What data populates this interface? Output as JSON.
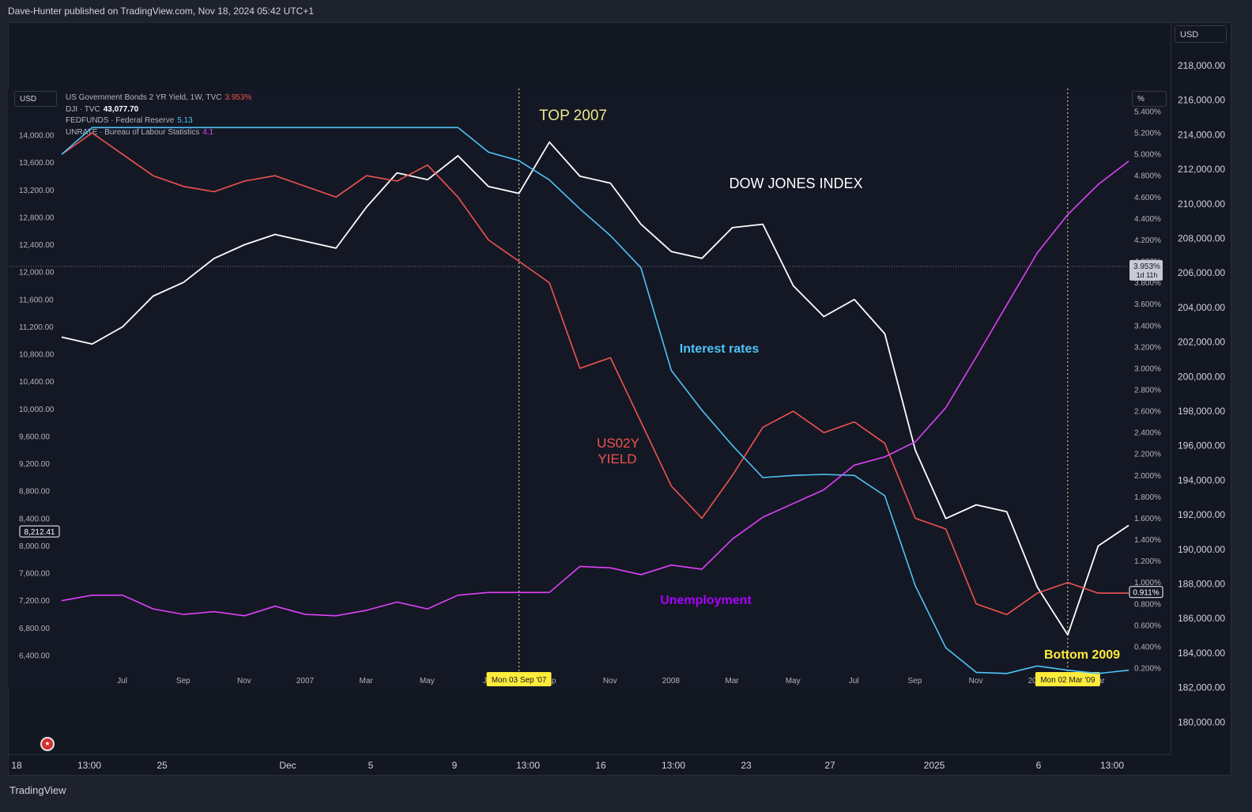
{
  "header": {
    "text": "Dave-Hunter published on TradingView.com, Nov 18, 2024 05:42 UTC+1"
  },
  "footer": {
    "brand": "TradingView"
  },
  "currency_outer": "USD",
  "currency_inner": "USD",
  "percent_label": "%",
  "legend": [
    {
      "label": "US Government Bonds 2 YR Yield, 1W, TVC",
      "value": "3.953%",
      "color": "#ef5350"
    },
    {
      "label": "DJI · TVC",
      "value": "43,077.70",
      "color": "#ffffff"
    },
    {
      "label": "FEDFUNDS · Federal Reserve",
      "value": "5.13",
      "color": "#4fc3f7"
    },
    {
      "label": "UNRATE · Bureau of Labour Statistics",
      "value": "4.1",
      "color": "#e040fb"
    }
  ],
  "outer_axis": {
    "ticks": [
      "218,000.00",
      "216,000.00",
      "214,000.00",
      "212,000.00",
      "210,000.00",
      "208,000.00",
      "206,000.00",
      "204,000.00",
      "202,000.00",
      "200,000.00",
      "198,000.00",
      "196,000.00",
      "194,000.00",
      "192,000.00",
      "190,000.00",
      "188,000.00",
      "186,000.00",
      "184,000.00",
      "182,000.00",
      "180,000.00"
    ]
  },
  "bottom_axis": {
    "ticks": [
      "18",
      "13:00",
      "25",
      "Dec",
      "5",
      "9",
      "13:00",
      "16",
      "13:00",
      "23",
      "27",
      "2025",
      "6",
      "13:00"
    ]
  },
  "chart_data": {
    "type": "line",
    "x_ticks": [
      "Jul",
      "Sep",
      "Nov",
      "2007",
      "Mar",
      "May",
      "Jul",
      "Sep",
      "Nov",
      "2008",
      "Mar",
      "May",
      "Jul",
      "Sep",
      "Nov",
      "2009",
      "Mar"
    ],
    "x_range": [
      "2006-06",
      "2009-05"
    ],
    "left_axis": {
      "ticks": [
        "14,000.00",
        "13,600.00",
        "13,200.00",
        "12,800.00",
        "12,400.00",
        "12,000.00",
        "11,600.00",
        "11,200.00",
        "10,800.00",
        "10,400.00",
        "10,000.00",
        "9,600.00",
        "9,200.00",
        "8,800.00",
        "8,400.00",
        "8,000.00",
        "7,600.00",
        "7,200.00",
        "6,800.00",
        "6,400.00"
      ],
      "range": [
        6200,
        14380
      ],
      "current_value": "8,212.41",
      "current_numeric": 8212.41
    },
    "right_axis": {
      "ticks": [
        "5.400%",
        "5.200%",
        "5.000%",
        "4.800%",
        "4.600%",
        "4.400%",
        "4.200%",
        "4.000%",
        "3.800%",
        "3.600%",
        "3.400%",
        "3.200%",
        "3.000%",
        "2.800%",
        "2.600%",
        "2.400%",
        "2.200%",
        "2.000%",
        "1.800%",
        "1.600%",
        "1.400%",
        "1.200%",
        "1.000%",
        "0.800%",
        "0.600%",
        "0.400%",
        "0.200%"
      ],
      "range": [
        0.1,
        5.6
      ],
      "current_value": "3.953%",
      "countdown": "1d 11h",
      "current_numeric": 3.953,
      "yield_value": "0.911%",
      "yield_numeric": 0.911
    },
    "annotations": [
      {
        "text": "TOP 2007",
        "color": "#f0e68c"
      },
      {
        "text": "DOW JONES INDEX",
        "color": "#ffffff"
      },
      {
        "text": "Interest rates",
        "color": "#4fc3f7"
      },
      {
        "text": "US02Y",
        "color": "#ef5350"
      },
      {
        "text": "YIELD",
        "color": "#ef5350"
      },
      {
        "text": "Unemployment",
        "color": "#aa00ff"
      },
      {
        "text": "Bottom 2009",
        "color": "#ffeb3b"
      }
    ],
    "vertical_markers": [
      {
        "x": "2007-09",
        "label": "Mon 03 Sep '07"
      },
      {
        "x": "2009-03",
        "label": "Mon 02 Mar '09"
      }
    ],
    "series": [
      {
        "key": "dji",
        "axis": "left",
        "color": "#ffffff",
        "x": [
          "2006-06",
          "2006-07",
          "2006-08",
          "2006-09",
          "2006-10",
          "2006-11",
          "2006-12",
          "2007-01",
          "2007-02",
          "2007-03",
          "2007-04",
          "2007-05",
          "2007-06",
          "2007-07",
          "2007-08",
          "2007-09",
          "2007-10",
          "2007-11",
          "2007-12",
          "2008-01",
          "2008-02",
          "2008-03",
          "2008-04",
          "2008-05",
          "2008-06",
          "2008-07",
          "2008-08",
          "2008-09",
          "2008-10",
          "2008-11",
          "2008-12",
          "2009-01",
          "2009-02",
          "2009-03",
          "2009-04",
          "2009-05"
        ],
        "values": [
          11050,
          10950,
          11200,
          11650,
          11850,
          12200,
          12400,
          12550,
          12450,
          12350,
          12950,
          13450,
          13350,
          13700,
          13250,
          13150,
          13900,
          13400,
          13300,
          12700,
          12300,
          12200,
          12650,
          12700,
          11800,
          11350,
          11600,
          11100,
          9400,
          8400,
          8600,
          8500,
          7400,
          6700,
          8000,
          8300
        ]
      },
      {
        "key": "us02y",
        "axis": "right",
        "color": "#ef5350",
        "x": [
          "2006-06",
          "2006-07",
          "2006-08",
          "2006-09",
          "2006-10",
          "2006-11",
          "2006-12",
          "2007-01",
          "2007-02",
          "2007-03",
          "2007-04",
          "2007-05",
          "2007-06",
          "2007-07",
          "2007-08",
          "2007-09",
          "2007-10",
          "2007-11",
          "2007-12",
          "2008-01",
          "2008-02",
          "2008-03",
          "2008-04",
          "2008-05",
          "2008-06",
          "2008-07",
          "2008-08",
          "2008-09",
          "2008-10",
          "2008-11",
          "2008-12",
          "2009-01",
          "2009-02",
          "2009-03",
          "2009-04",
          "2009-05"
        ],
        "values": [
          5.0,
          5.2,
          5.0,
          4.8,
          4.7,
          4.65,
          4.75,
          4.8,
          4.7,
          4.6,
          4.8,
          4.75,
          4.9,
          4.6,
          4.2,
          4.0,
          3.8,
          3.0,
          3.1,
          2.5,
          1.9,
          1.6,
          2.0,
          2.45,
          2.6,
          2.4,
          2.5,
          2.3,
          1.6,
          1.5,
          0.8,
          0.7,
          0.9,
          1.0,
          0.9,
          0.9
        ]
      },
      {
        "key": "fedfunds",
        "axis": "right",
        "color": "#4fc3f7",
        "x": [
          "2006-06",
          "2006-07",
          "2006-08",
          "2006-09",
          "2006-10",
          "2006-11",
          "2006-12",
          "2007-01",
          "2007-02",
          "2007-03",
          "2007-04",
          "2007-05",
          "2007-06",
          "2007-07",
          "2007-08",
          "2007-09",
          "2007-10",
          "2007-11",
          "2007-12",
          "2008-01",
          "2008-02",
          "2008-03",
          "2008-04",
          "2008-05",
          "2008-06",
          "2008-07",
          "2008-08",
          "2008-09",
          "2008-10",
          "2008-11",
          "2008-12",
          "2009-01",
          "2009-02",
          "2009-03",
          "2009-04",
          "2009-05"
        ],
        "values": [
          5.0,
          5.25,
          5.25,
          5.25,
          5.25,
          5.25,
          5.25,
          5.25,
          5.25,
          5.25,
          5.25,
          5.25,
          5.25,
          5.25,
          5.02,
          4.94,
          4.76,
          4.49,
          4.24,
          3.94,
          2.98,
          2.61,
          2.28,
          1.98,
          2.0,
          2.01,
          2.0,
          1.81,
          0.97,
          0.39,
          0.16,
          0.15,
          0.22,
          0.18,
          0.15,
          0.18
        ]
      },
      {
        "key": "unrate",
        "axis": "left",
        "color": "#e040fb",
        "x": [
          "2006-06",
          "2006-07",
          "2006-08",
          "2006-09",
          "2006-10",
          "2006-11",
          "2006-12",
          "2007-01",
          "2007-02",
          "2007-03",
          "2007-04",
          "2007-05",
          "2007-06",
          "2007-07",
          "2007-08",
          "2007-09",
          "2007-10",
          "2007-11",
          "2007-12",
          "2008-01",
          "2008-02",
          "2008-03",
          "2008-04",
          "2008-05",
          "2008-06",
          "2008-07",
          "2008-08",
          "2008-09",
          "2008-10",
          "2008-11",
          "2008-12",
          "2009-01",
          "2009-02",
          "2009-03",
          "2009-04",
          "2009-05"
        ],
        "values": [
          7200,
          7280,
          7280,
          7080,
          7000,
          7040,
          6980,
          7120,
          7000,
          6980,
          7060,
          7180,
          7080,
          7280,
          7320,
          7320,
          7320,
          7700,
          7680,
          7580,
          7720,
          7660,
          8100,
          8420,
          8620,
          8820,
          9180,
          9300,
          9520,
          10020,
          10760,
          11520,
          12280,
          12840,
          13280,
          13620
        ]
      }
    ]
  }
}
